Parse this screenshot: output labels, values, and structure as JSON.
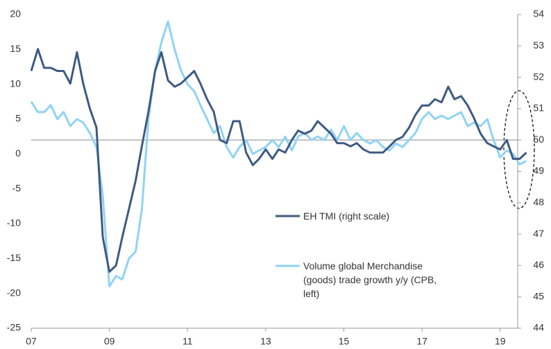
{
  "chart_data": {
    "type": "line",
    "x": [
      2007,
      2007.17,
      2007.33,
      2007.5,
      2007.67,
      2007.83,
      2008,
      2008.17,
      2008.33,
      2008.5,
      2008.67,
      2008.83,
      2009,
      2009.17,
      2009.33,
      2009.5,
      2009.67,
      2009.83,
      2010,
      2010.17,
      2010.33,
      2010.5,
      2010.67,
      2010.83,
      2011,
      2011.17,
      2011.33,
      2011.5,
      2011.67,
      2011.83,
      2012,
      2012.17,
      2012.33,
      2012.5,
      2012.67,
      2012.83,
      2013,
      2013.17,
      2013.33,
      2013.5,
      2013.67,
      2013.83,
      2014,
      2014.17,
      2014.33,
      2014.5,
      2014.67,
      2014.83,
      2015,
      2015.17,
      2015.33,
      2015.5,
      2015.67,
      2015.83,
      2016,
      2016.17,
      2016.33,
      2016.5,
      2016.67,
      2016.83,
      2017,
      2017.17,
      2017.33,
      2017.5,
      2017.67,
      2017.83,
      2018,
      2018.17,
      2018.33,
      2018.5,
      2018.67,
      2018.83,
      2019,
      2019.17,
      2019.33,
      2019.5,
      2019.67
    ],
    "series": [
      {
        "name": "EH TMI (right scale)",
        "color": "#3e5a80",
        "axis": "y2",
        "values": [
          52.2,
          52.9,
          52.3,
          52.3,
          52.2,
          52.2,
          51.8,
          52.8,
          51.8,
          51.0,
          50.4,
          46.9,
          45.8,
          46.0,
          46.9,
          47.8,
          48.7,
          49.8,
          50.9,
          52.2,
          52.8,
          51.9,
          51.7,
          51.8,
          52.0,
          52.2,
          51.8,
          51.3,
          50.9,
          50.0,
          49.9,
          50.6,
          50.6,
          49.6,
          49.2,
          49.4,
          49.7,
          49.4,
          49.7,
          49.6,
          50.0,
          50.3,
          50.2,
          50.3,
          50.6,
          50.4,
          50.2,
          49.9,
          49.9,
          49.8,
          49.9,
          49.7,
          49.6,
          49.6,
          49.6,
          49.8,
          50.0,
          50.1,
          50.4,
          50.8,
          51.1,
          51.1,
          51.3,
          51.2,
          51.7,
          51.3,
          51.4,
          51.1,
          50.7,
          50.2,
          49.9,
          49.8,
          49.7,
          50.0,
          49.4,
          49.4,
          49.6
        ]
      },
      {
        "name": "Volume global Merchandise (goods) trade growth y/y (CPB, left)",
        "color": "#8fd3f5",
        "values": [
          7.5,
          6,
          6,
          7,
          5,
          6,
          4,
          5,
          4.5,
          3,
          1,
          -6,
          -19,
          -17.5,
          -18,
          -15,
          -14,
          -8,
          5,
          12,
          16,
          19,
          15,
          12,
          10,
          9,
          7,
          5,
          3,
          4,
          1,
          -0.5,
          1,
          2,
          0,
          0.5,
          1,
          2,
          1,
          2.5,
          0.5,
          2.5,
          3,
          2,
          2.5,
          2,
          3.5,
          2,
          4,
          2,
          3,
          2,
          1.5,
          2,
          1,
          0.5,
          1.5,
          1,
          2,
          3,
          5,
          6,
          5,
          5.5,
          5,
          5.5,
          6,
          4,
          4.5,
          4,
          5,
          2,
          -0.5,
          0.5,
          0,
          -1.5,
          -1
        ]
      }
    ],
    "xlim": [
      2007,
      2019.75
    ],
    "xticks": [
      {
        "value": 2007,
        "label": "07"
      },
      {
        "value": 2009,
        "label": "09"
      },
      {
        "value": 2011,
        "label": "11"
      },
      {
        "value": 2013,
        "label": "13"
      },
      {
        "value": 2015,
        "label": "15"
      },
      {
        "value": 2017,
        "label": "17"
      },
      {
        "value": 2019,
        "label": "19"
      }
    ],
    "ylim": [
      -25,
      20
    ],
    "yticks": [
      -25,
      -20,
      -15,
      -10,
      -5,
      0,
      5,
      10,
      15,
      20
    ],
    "y2lim": [
      44,
      54
    ],
    "y2ticks": [
      44,
      45,
      46,
      47,
      48,
      49,
      50,
      51,
      52,
      53,
      54
    ],
    "reference_line": {
      "axis": "y2",
      "value": 50,
      "color": "#999999"
    },
    "grid": false
  }
}
